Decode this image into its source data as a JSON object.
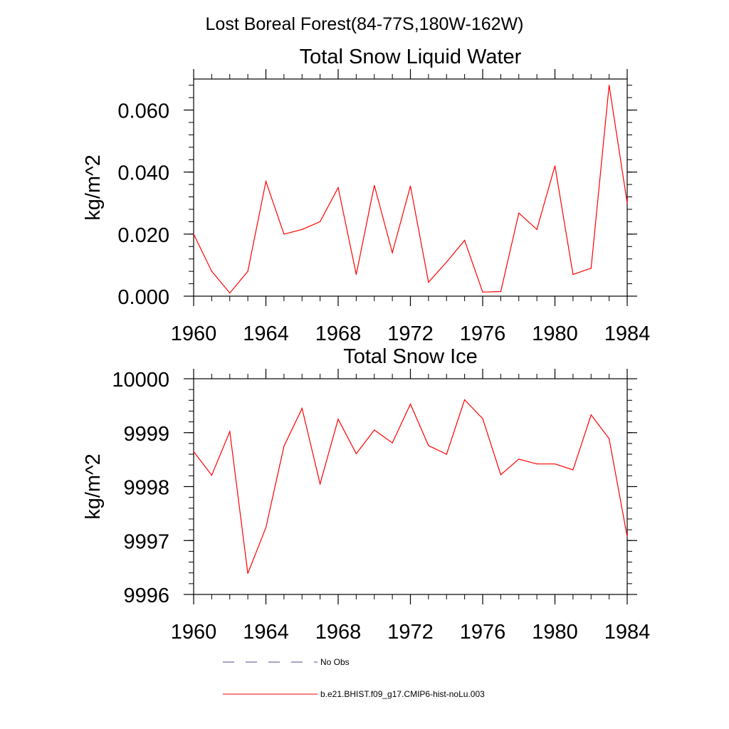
{
  "header": {
    "title": "Lost Boreal Forest(84-77S,180W-162W)"
  },
  "chart_data": [
    {
      "type": "line",
      "title": "Total Snow Liquid Water",
      "xlabel": "",
      "ylabel": "kg/m^2",
      "xlim": [
        1960,
        1984
      ],
      "ylim": [
        0.0,
        0.07
      ],
      "xticks": [
        1960,
        1964,
        1968,
        1972,
        1976,
        1980,
        1984
      ],
      "yticks": [
        0.0,
        0.02,
        0.04,
        0.06
      ],
      "ytick_labels": [
        "0.000",
        "0.020",
        "0.040",
        "0.060"
      ],
      "grid": false,
      "series": [
        {
          "name": "b.e21.BHIST.f09_g17.CMIP6-hist-noLu.003",
          "color": "#ff0000",
          "x": [
            1960,
            1961,
            1962,
            1963,
            1964,
            1965,
            1966,
            1967,
            1968,
            1969,
            1970,
            1971,
            1972,
            1973,
            1974,
            1975,
            1976,
            1977,
            1978,
            1979,
            1980,
            1981,
            1982,
            1983,
            1984
          ],
          "values": [
            0.02,
            0.008,
            0.001,
            0.008,
            0.037,
            0.02,
            0.0215,
            0.024,
            0.035,
            0.007,
            0.0357,
            0.014,
            0.0355,
            0.0045,
            0.011,
            0.018,
            0.0013,
            0.0015,
            0.0268,
            0.0215,
            0.042,
            0.007,
            0.009,
            0.068,
            0.03
          ]
        }
      ]
    },
    {
      "type": "line",
      "title": "Total Snow Ice",
      "xlabel": "",
      "ylabel": "kg/m^2",
      "xlim": [
        1960,
        1984
      ],
      "ylim": [
        9996,
        10000
      ],
      "xticks": [
        1960,
        1964,
        1968,
        1972,
        1976,
        1980,
        1984
      ],
      "yticks": [
        9996,
        9997,
        9998,
        9999,
        10000
      ],
      "ytick_labels": [
        "9996",
        "9997",
        "9998",
        "9999",
        "10000"
      ],
      "grid": false,
      "series": [
        {
          "name": "b.e21.BHIST.f09_g17.CMIP6-hist-noLu.003",
          "color": "#ff0000",
          "x": [
            1960,
            1961,
            1962,
            1963,
            1964,
            1965,
            1966,
            1967,
            1968,
            1969,
            1970,
            1971,
            1972,
            1973,
            1974,
            1975,
            1976,
            1977,
            1978,
            1979,
            1980,
            1981,
            1982,
            1983,
            1984
          ],
          "values": [
            9998.65,
            9998.21,
            9999.02,
            9996.39,
            9997.24,
            9998.75,
            9999.45,
            9998.05,
            9999.25,
            9998.61,
            9999.05,
            9998.81,
            9999.53,
            9998.76,
            9998.6,
            9999.61,
            9999.26,
            9998.22,
            9998.51,
            9998.42,
            9998.42,
            9998.31,
            9999.33,
            9998.89,
            9997.07
          ]
        }
      ]
    }
  ],
  "legend": {
    "placement": "bottom",
    "items": [
      {
        "label": "No Obs",
        "color": "#4b4b8c",
        "style": "dashed"
      },
      {
        "label": "b.e21.BHIST.f09_g17.CMIP6-hist-noLu.003",
        "color": "#ff0000",
        "style": "solid"
      }
    ]
  }
}
